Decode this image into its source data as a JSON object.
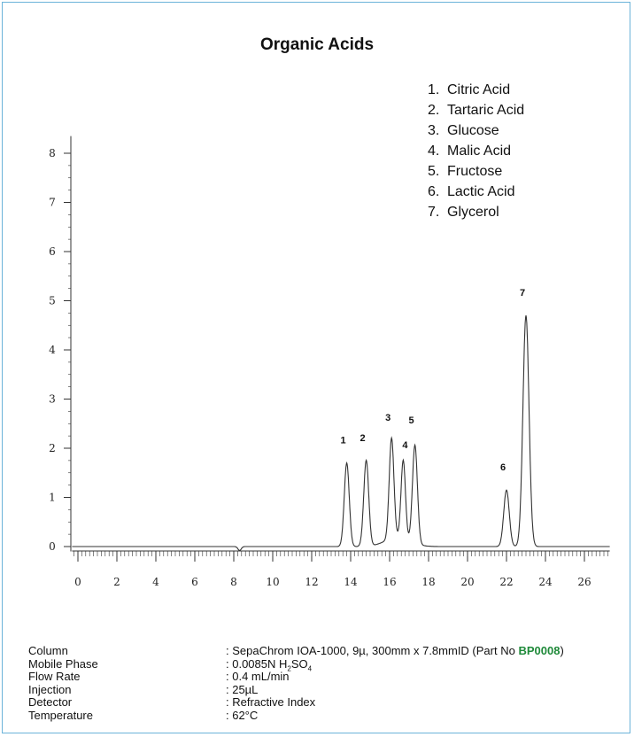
{
  "chart_data": {
    "type": "line",
    "title": "Organic Acids",
    "xlabel": "",
    "ylabel": "",
    "xlim": [
      0,
      27
    ],
    "ylim": [
      0,
      8
    ],
    "x_ticks": [
      "0",
      "2",
      "4",
      "6",
      "8",
      "10",
      "12",
      "14",
      "16",
      "18",
      "20",
      "22",
      "24",
      "26"
    ],
    "y_ticks": [
      "0",
      "1",
      "2",
      "3",
      "4",
      "5",
      "6",
      "7",
      "8"
    ],
    "peaks": [
      {
        "label": "1",
        "x": 13.8,
        "y": 1.7,
        "width": 0.18
      },
      {
        "label": "2",
        "x": 14.8,
        "y": 1.75,
        "width": 0.18
      },
      {
        "label": "3",
        "x": 16.1,
        "y": 2.05,
        "width": 0.17
      },
      {
        "label": "4",
        "x": 16.7,
        "y": 1.6,
        "width": 0.16
      },
      {
        "label": "5",
        "x": 17.3,
        "y": 2.0,
        "width": 0.18
      },
      {
        "label": "6",
        "x": 22.0,
        "y": 1.15,
        "width": 0.2
      },
      {
        "label": "7",
        "x": 23.0,
        "y": 4.7,
        "width": 0.22
      }
    ],
    "legend": [
      {
        "num": "1.",
        "name": "Citric Acid"
      },
      {
        "num": "2.",
        "name": "Tartaric Acid"
      },
      {
        "num": "3.",
        "name": "Glucose"
      },
      {
        "num": "4.",
        "name": "Malic Acid"
      },
      {
        "num": "5.",
        "name": "Fructose"
      },
      {
        "num": "6.",
        "name": "Lactic Acid"
      },
      {
        "num": "7.",
        "name": "Glycerol"
      }
    ],
    "legend_position": "top-right",
    "grid": false
  },
  "conditions": [
    {
      "label": "Column",
      "value": ": SepaChrom IOA-1000, 9µ, 300mm x 7.8mmID (Part No ",
      "part_no": "BP0008",
      "suffix": ")"
    },
    {
      "label": "Mobile Phase",
      "value": ": 0.0085N H",
      "sub1": "2",
      "mid": "SO",
      "sub2": "4"
    },
    {
      "label": "Flow Rate",
      "value": ": 0.4 mL/min"
    },
    {
      "label": "Injection",
      "value": ": 25µL"
    },
    {
      "label": "Detector",
      "value": ": Refractive Index"
    },
    {
      "label": "Temperature",
      "value": ": 62°C"
    }
  ],
  "colors": {
    "border": "#6bb3d9",
    "part_no": "#1f8a3a",
    "trace": "#333333"
  }
}
